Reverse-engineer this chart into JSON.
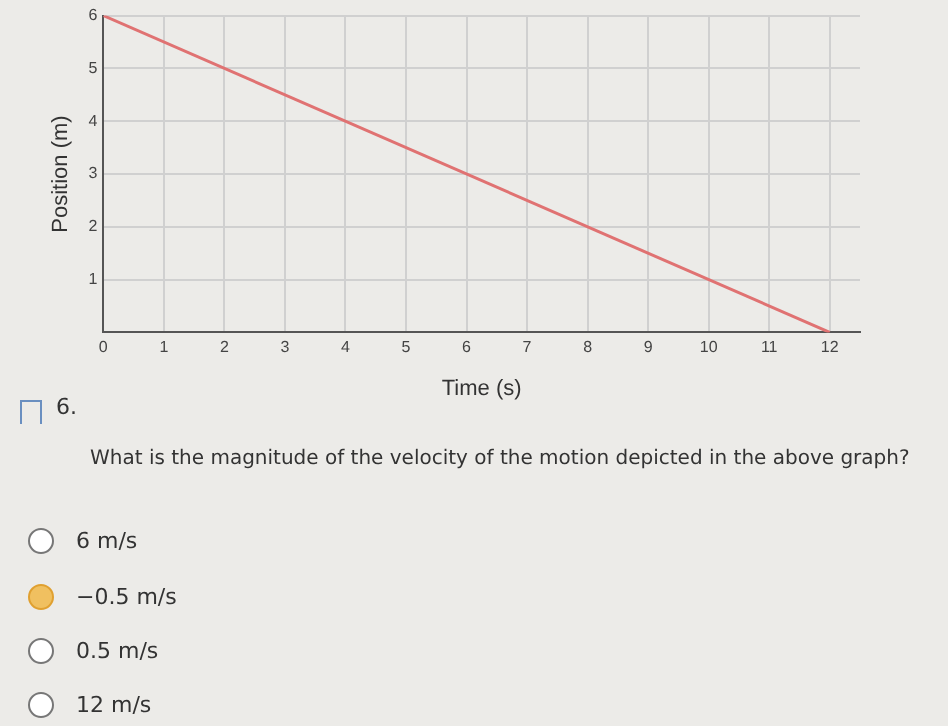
{
  "chart_data": {
    "type": "line",
    "xlabel": "Time (s)",
    "ylabel": "Position (m)",
    "x": [
      0,
      12
    ],
    "series": [
      {
        "color": "#e07272",
        "values": [
          6,
          0
        ]
      }
    ],
    "xlim": [
      0,
      12.5
    ],
    "xticks": [
      0,
      1,
      2,
      3,
      4,
      5,
      6,
      7,
      8,
      9,
      10,
      11,
      12
    ],
    "ylim": [
      0,
      6
    ],
    "yticks": [
      1,
      2,
      3,
      4,
      5,
      6
    ],
    "grid": true,
    "legend": false,
    "marker": "none",
    "line_style": "solid",
    "annotations": [
      "6.",
      "What is the magnitude of the velocity of the motion depicted in the above graph?",
      "6 m/s",
      "−0.5 m/s",
      "0.5 m/s",
      "12 m/s"
    ]
  }
}
